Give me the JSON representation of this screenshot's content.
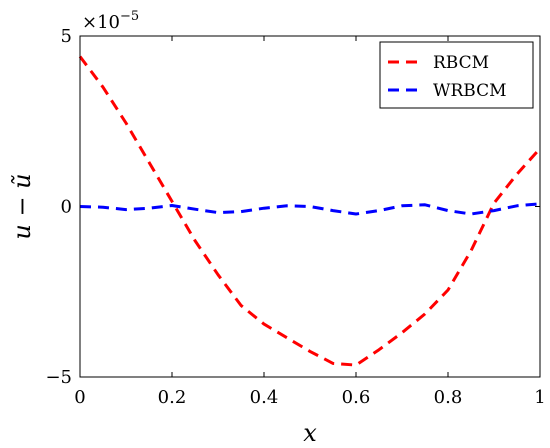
{
  "chart_data": {
    "type": "line",
    "xlabel": "x",
    "ylabel": "u − ũ",
    "y_multiplier_label": "×10",
    "y_multiplier_exponent": "−5",
    "xlim": [
      0,
      1
    ],
    "ylim": [
      -5,
      5
    ],
    "x_ticks": [
      0,
      0.2,
      0.4,
      0.6,
      0.8,
      1
    ],
    "x_tick_labels": [
      "0",
      "0.2",
      "0.4",
      "0.6",
      "0.8",
      "1"
    ],
    "y_ticks": [
      -5,
      0,
      5
    ],
    "y_tick_labels": [
      "−5",
      "0",
      "5"
    ],
    "grid": false,
    "legend_position": "top-right",
    "series": [
      {
        "name": "RBCM",
        "color": "#ff0000",
        "dash": "dashed",
        "x": [
          0,
          0.05,
          0.1,
          0.15,
          0.2,
          0.25,
          0.3,
          0.35,
          0.4,
          0.45,
          0.5,
          0.55,
          0.6,
          0.65,
          0.7,
          0.75,
          0.8,
          0.85,
          0.9,
          0.95,
          1
        ],
        "y": [
          4.4,
          3.5,
          2.45,
          1.3,
          0.15,
          -1.0,
          -2.0,
          -2.9,
          -3.45,
          -3.85,
          -4.25,
          -4.6,
          -4.65,
          -4.2,
          -3.7,
          -3.15,
          -2.45,
          -1.3,
          0.1,
          0.95,
          1.7
        ]
      },
      {
        "name": "WRBCM",
        "color": "#0000ff",
        "dash": "dashed",
        "x": [
          0,
          0.05,
          0.1,
          0.15,
          0.2,
          0.25,
          0.3,
          0.35,
          0.4,
          0.45,
          0.5,
          0.55,
          0.6,
          0.65,
          0.7,
          0.75,
          0.8,
          0.85,
          0.9,
          0.95,
          1
        ],
        "y": [
          0.0,
          -0.02,
          -0.09,
          -0.05,
          0.03,
          -0.08,
          -0.18,
          -0.15,
          -0.05,
          0.02,
          0.0,
          -0.12,
          -0.22,
          -0.12,
          0.02,
          0.05,
          -0.12,
          -0.22,
          -0.12,
          0.02,
          0.08
        ]
      }
    ]
  }
}
